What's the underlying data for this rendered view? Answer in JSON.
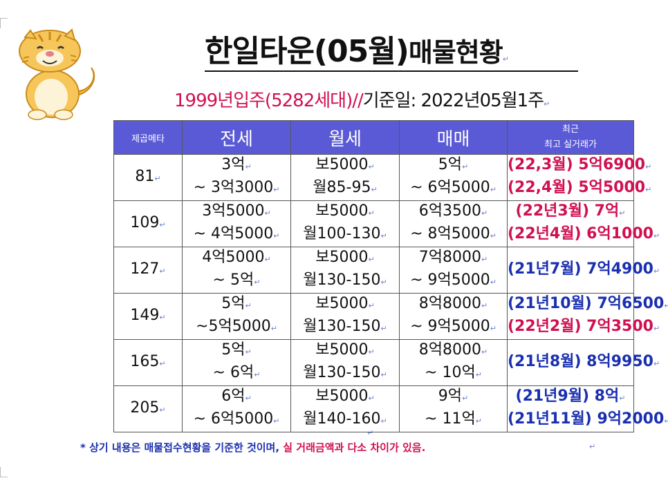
{
  "title": {
    "part1": "한일타운(05월)",
    "part2": "매물현황"
  },
  "subtitle": {
    "highlight": "1999년입주(5282세대)//",
    "rest": "기준일: 2022년05월1주"
  },
  "table": {
    "headers": {
      "area": "제곱메타",
      "jeonse": "전세",
      "wolse": "월세",
      "maemae": "매매",
      "recent_line1": "최근",
      "recent_line2": "최고 실거래가"
    },
    "rows": [
      {
        "area": "81",
        "jeonse": [
          "3억",
          "~ 3억3000"
        ],
        "wolse": [
          "보5000",
          "월85-95"
        ],
        "maemae": [
          "5억",
          "~ 6억5000"
        ],
        "trades": [
          {
            "text": "(22,3월) 5억6900",
            "color": "pink"
          },
          {
            "text": "(22,4월) 5억5000",
            "color": "pink"
          }
        ]
      },
      {
        "area": "109",
        "jeonse": [
          "3억5000",
          "~ 4억5000"
        ],
        "wolse": [
          "보5000",
          "월100-130"
        ],
        "maemae": [
          "6억3500",
          "~ 8억5000"
        ],
        "trades": [
          {
            "text": "(22년3월) 7억",
            "color": "pink"
          },
          {
            "text": "(22년4월) 6억1000",
            "color": "pink"
          }
        ]
      },
      {
        "area": "127",
        "jeonse": [
          "4억5000",
          "~ 5억"
        ],
        "wolse": [
          "보5000",
          "월130-150"
        ],
        "maemae": [
          "7억8000",
          "~ 9억5000"
        ],
        "trades": [
          {
            "text": "(21년7월) 7억4900",
            "color": "blue"
          }
        ]
      },
      {
        "area": "149",
        "jeonse": [
          "5억",
          "~5억5000"
        ],
        "wolse": [
          "보5000",
          "월130-150"
        ],
        "maemae": [
          "8억8000",
          "~ 9억5000"
        ],
        "trades": [
          {
            "text": "(21년10월) 7억6500",
            "color": "blue"
          },
          {
            "text": "(22년2월) 7억3500",
            "color": "pink"
          }
        ]
      },
      {
        "area": "165",
        "jeonse": [
          "5억",
          "~ 6억"
        ],
        "wolse": [
          "보5000",
          "월130-150"
        ],
        "maemae": [
          "8억8000",
          "~ 10억"
        ],
        "trades": [
          {
            "text": "(21년8월) 8억9950",
            "color": "blue"
          }
        ]
      },
      {
        "area": "205",
        "jeonse": [
          "6억",
          "~ 6억5000"
        ],
        "wolse": [
          "보5000",
          "월140-160"
        ],
        "maemae": [
          "9억",
          "~ 11억"
        ],
        "trades": [
          {
            "text": "(21년9월) 8억",
            "color": "blue"
          },
          {
            "text": "(21년11월) 9억2000",
            "color": "blue"
          }
        ]
      }
    ]
  },
  "note": {
    "part1": "* 상기 내용은 매물접수현황을 기준한 것이며, ",
    "part2": "실 거래금액과 다소 차이가 있음."
  },
  "paragraph_mark": "↵",
  "colors": {
    "header_bg": "#5a5ad6",
    "pink": "#d01050",
    "blue": "#1a2fb0"
  }
}
